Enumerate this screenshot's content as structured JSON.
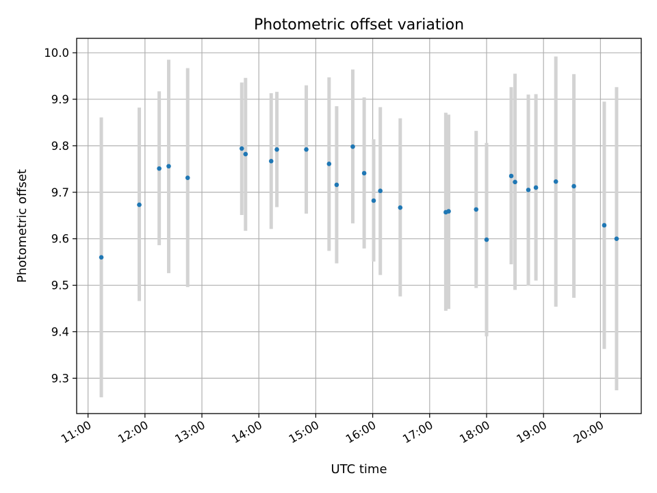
{
  "chart_data": {
    "type": "scatter",
    "title": "Photometric offset variation",
    "xlabel": "UTC time",
    "ylabel": "Photometric offset",
    "x_kind": "time",
    "xlim": [
      "10:48",
      "20:43"
    ],
    "ylim": [
      9.224,
      10.031
    ],
    "x_ticks": [
      "11:00",
      "12:00",
      "13:00",
      "14:00",
      "15:00",
      "16:00",
      "17:00",
      "18:00",
      "19:00",
      "20:00"
    ],
    "y_ticks": [
      9.3,
      9.4,
      9.5,
      9.6,
      9.7,
      9.8,
      9.9,
      10.0
    ],
    "y_tick_labels": [
      "9.3",
      "9.4",
      "9.5",
      "9.6",
      "9.7",
      "9.8",
      "9.9",
      "10.0"
    ],
    "grid": true,
    "colors": {
      "point": "#1f77b4",
      "errorbar": "#d3d3d3"
    },
    "points": [
      {
        "t": "11:14",
        "y": 9.56,
        "lo": 9.259,
        "hi": 9.861
      },
      {
        "t": "11:54",
        "y": 9.673,
        "lo": 9.466,
        "hi": 9.882
      },
      {
        "t": "12:15",
        "y": 9.751,
        "lo": 9.586,
        "hi": 9.917
      },
      {
        "t": "12:25",
        "y": 9.756,
        "lo": 9.526,
        "hi": 9.985
      },
      {
        "t": "12:45",
        "y": 9.731,
        "lo": 9.496,
        "hi": 9.967
      },
      {
        "t": "13:42",
        "y": 9.794,
        "lo": 9.651,
        "hi": 9.936
      },
      {
        "t": "13:46",
        "y": 9.782,
        "lo": 9.617,
        "hi": 9.946
      },
      {
        "t": "14:13",
        "y": 9.767,
        "lo": 9.621,
        "hi": 9.913
      },
      {
        "t": "14:19",
        "y": 9.792,
        "lo": 9.668,
        "hi": 9.916
      },
      {
        "t": "14:50",
        "y": 9.792,
        "lo": 9.654,
        "hi": 9.93
      },
      {
        "t": "15:14",
        "y": 9.761,
        "lo": 9.574,
        "hi": 9.947
      },
      {
        "t": "15:22",
        "y": 9.716,
        "lo": 9.547,
        "hi": 9.885
      },
      {
        "t": "15:39",
        "y": 9.798,
        "lo": 9.633,
        "hi": 9.964
      },
      {
        "t": "15:51",
        "y": 9.741,
        "lo": 9.579,
        "hi": 9.904
      },
      {
        "t": "16:01",
        "y": 9.682,
        "lo": 9.551,
        "hi": 9.814
      },
      {
        "t": "16:08",
        "y": 9.703,
        "lo": 9.522,
        "hi": 9.883
      },
      {
        "t": "16:29",
        "y": 9.667,
        "lo": 9.476,
        "hi": 9.859
      },
      {
        "t": "17:17",
        "y": 9.657,
        "lo": 9.445,
        "hi": 9.871
      },
      {
        "t": "17:20",
        "y": 9.659,
        "lo": 9.449,
        "hi": 9.867
      },
      {
        "t": "17:49",
        "y": 9.663,
        "lo": 9.494,
        "hi": 9.832
      },
      {
        "t": "18:00",
        "y": 9.598,
        "lo": 9.39,
        "hi": 9.806
      },
      {
        "t": "18:26",
        "y": 9.735,
        "lo": 9.545,
        "hi": 9.926
      },
      {
        "t": "18:30",
        "y": 9.722,
        "lo": 9.49,
        "hi": 9.955
      },
      {
        "t": "18:44",
        "y": 9.705,
        "lo": 9.499,
        "hi": 9.91
      },
      {
        "t": "18:52",
        "y": 9.71,
        "lo": 9.51,
        "hi": 9.911
      },
      {
        "t": "19:13",
        "y": 9.723,
        "lo": 9.454,
        "hi": 9.992
      },
      {
        "t": "19:32",
        "y": 9.713,
        "lo": 9.473,
        "hi": 9.954
      },
      {
        "t": "20:04",
        "y": 9.629,
        "lo": 9.363,
        "hi": 9.895
      },
      {
        "t": "20:17",
        "y": 9.6,
        "lo": 9.274,
        "hi": 9.926
      }
    ]
  }
}
